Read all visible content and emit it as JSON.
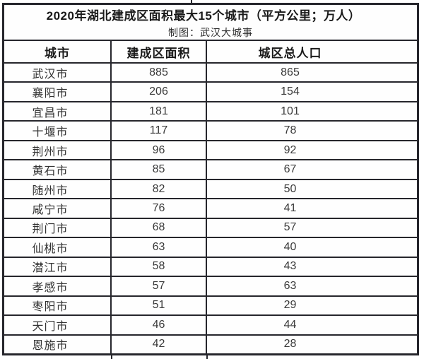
{
  "table": {
    "title": "2020年湖北建成区面积最大15个城市（平方公里；万人）",
    "subtitle": "制图：武汉大城事",
    "columns": [
      "城市",
      "建成区面积",
      "城区总人口"
    ],
    "rows": [
      [
        "武汉市",
        "885",
        "865"
      ],
      [
        "襄阳市",
        "206",
        "154"
      ],
      [
        "宜昌市",
        "181",
        "101"
      ],
      [
        "十堰市",
        "117",
        "78"
      ],
      [
        "荆州市",
        "96",
        "92"
      ],
      [
        "黄石市",
        "85",
        "67"
      ],
      [
        "随州市",
        "82",
        "50"
      ],
      [
        "咸宁市",
        "76",
        "41"
      ],
      [
        "荆门市",
        "68",
        "57"
      ],
      [
        "仙桃市",
        "63",
        "40"
      ],
      [
        "潜江市",
        "58",
        "43"
      ],
      [
        "孝感市",
        "57",
        "63"
      ],
      [
        "枣阳市",
        "51",
        "29"
      ],
      [
        "天门市",
        "46",
        "44"
      ],
      [
        "恩施市",
        "42",
        "28"
      ]
    ]
  },
  "colors": {
    "border": "#26262c",
    "text": "#323232",
    "heading": "#1a1a1a",
    "background": "#ffffff"
  },
  "chart_data": {
    "type": "table",
    "title": "2020年湖北建成区面积最大15个城市（平方公里；万人）",
    "subtitle": "制图：武汉大城事",
    "columns": [
      "城市",
      "建成区面积",
      "城区总人口"
    ],
    "units": {
      "建成区面积": "平方公里",
      "城区总人口": "万人"
    },
    "rows": [
      {
        "city": "武汉市",
        "built_up_area": 885,
        "urban_population": 865
      },
      {
        "city": "襄阳市",
        "built_up_area": 206,
        "urban_population": 154
      },
      {
        "city": "宜昌市",
        "built_up_area": 181,
        "urban_population": 101
      },
      {
        "city": "十堰市",
        "built_up_area": 117,
        "urban_population": 78
      },
      {
        "city": "荆州市",
        "built_up_area": 96,
        "urban_population": 92
      },
      {
        "city": "黄石市",
        "built_up_area": 85,
        "urban_population": 67
      },
      {
        "city": "随州市",
        "built_up_area": 82,
        "urban_population": 50
      },
      {
        "city": "咸宁市",
        "built_up_area": 76,
        "urban_population": 41
      },
      {
        "city": "荆门市",
        "built_up_area": 68,
        "urban_population": 57
      },
      {
        "city": "仙桃市",
        "built_up_area": 63,
        "urban_population": 40
      },
      {
        "city": "潜江市",
        "built_up_area": 58,
        "urban_population": 43
      },
      {
        "city": "孝感市",
        "built_up_area": 57,
        "urban_population": 63
      },
      {
        "city": "枣阳市",
        "built_up_area": 51,
        "urban_population": 29
      },
      {
        "city": "天门市",
        "built_up_area": 46,
        "urban_population": 44
      },
      {
        "city": "恩施市",
        "built_up_area": 42,
        "urban_population": 28
      }
    ]
  }
}
